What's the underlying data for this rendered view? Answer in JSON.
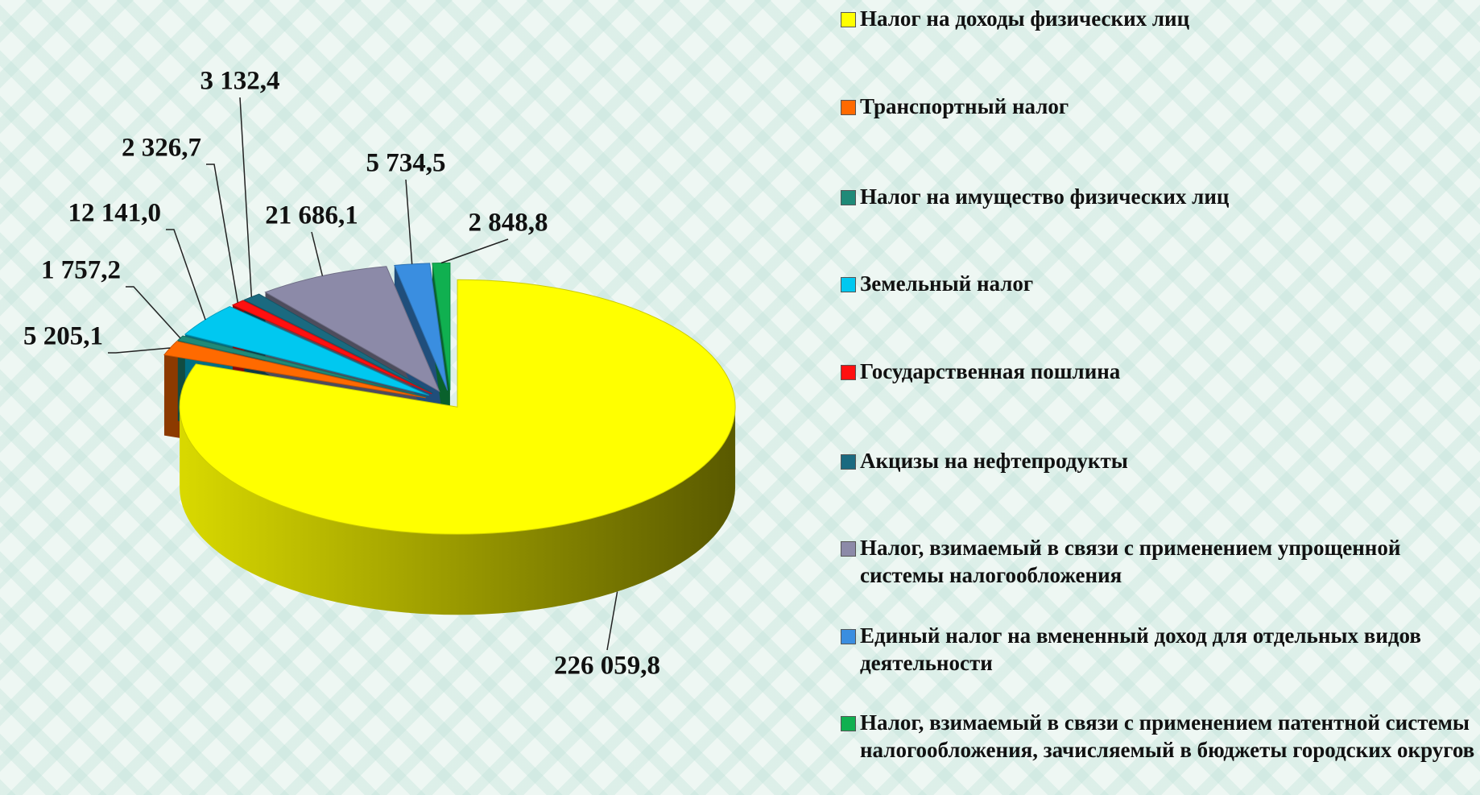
{
  "chart_data": {
    "type": "pie3d",
    "categories": [
      "Налог на доходы физических лиц",
      "Транспортный налог",
      "Налог на имущество физических лиц",
      "Земельный налог",
      "Государственная пошлина",
      "Акцизы на нефтепродукты",
      "Налог, взимаемый в связи с применением упрощенной системы налогообложения",
      "Единый налог на вмененный доход для отдельных видов деятельности",
      "Налог, взимаемый в связи с применением патентной системы налогообложения, зачисляемый в бюджеты городских округов"
    ],
    "values": [
      226059.8,
      5205.1,
      1757.2,
      12141.0,
      2326.7,
      3132.4,
      21686.1,
      5734.5,
      2848.8
    ],
    "value_labels": [
      "226 059,8",
      "5 205,1",
      "1 757,2",
      "12 141,0",
      "2 326,7",
      "3 132,4",
      "21 686,1",
      "5 734,5",
      "2 848,8"
    ],
    "colors": [
      "#ffff00",
      "#ff6a00",
      "#1f8a78",
      "#00c8f0",
      "#ff1010",
      "#1a6a80",
      "#8c8aa8",
      "#3a8ee0",
      "#10b050"
    ],
    "legend": "right"
  }
}
